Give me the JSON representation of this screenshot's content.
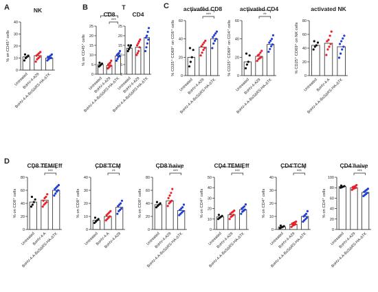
{
  "figure": {
    "bg": "#ffffff",
    "colors": {
      "black": "#111111",
      "red": "#e8202a",
      "blue": "#1f3fd6",
      "axis": "#222222"
    }
  },
  "chart_data": [
    {
      "id": "NK",
      "letter": "A",
      "type": "bar",
      "title": "NK",
      "ylabel": "% on CD45⁺ cells",
      "ylim": [
        0,
        40
      ],
      "yticks": [
        0,
        10,
        20,
        30,
        40
      ],
      "categories": [
        "Untreated",
        "BoHV-4-A29",
        "BoHV-4-A-BoSΔRS-HA-ΔTK"
      ],
      "values": [
        11,
        12,
        10
      ],
      "points": [
        [
          8,
          10,
          11,
          12,
          13
        ],
        [
          7,
          9,
          10,
          11,
          12,
          13,
          14,
          15
        ],
        [
          8,
          9,
          10,
          10,
          11,
          11,
          12,
          13
        ]
      ],
      "sig": []
    },
    {
      "id": "CD8T",
      "letter": "B",
      "group_title": "T",
      "type": "bar",
      "title": "CD8",
      "ylabel": "% on CD45⁺ cells",
      "ylim": [
        0,
        25
      ],
      "yticks": [
        0,
        5,
        10,
        15,
        20,
        25
      ],
      "categories": [
        "Untreated",
        "BoHV-4-A29",
        "BoHV-4-A-BoSΔRS-HA-ΔTK"
      ],
      "values": [
        5,
        4.5,
        9.5
      ],
      "points": [
        [
          4,
          4.5,
          5,
          5.5,
          6
        ],
        [
          3,
          3.5,
          4,
          4.5,
          5,
          5.5,
          6,
          7
        ],
        [
          7,
          8,
          9,
          9.5,
          10,
          10.5,
          11,
          12
        ]
      ],
      "sig": [
        {
          "from": 0,
          "to": 2,
          "label": "***",
          "level": 1
        },
        {
          "from": 1,
          "to": 2,
          "label": "***",
          "level": 0
        }
      ]
    },
    {
      "id": "CD4T",
      "type": "bar",
      "title": "CD4",
      "ylabel": "",
      "ylim": [
        0,
        25
      ],
      "yticks": [
        0,
        5,
        10,
        15,
        20,
        25
      ],
      "categories": [
        "Untreated",
        "BoHV-4-A29",
        "BoHV-4-A-BoSΔRS-HA-ΔTK"
      ],
      "values": [
        13.5,
        14,
        19
      ],
      "points": [
        [
          12,
          13,
          14,
          15,
          15
        ],
        [
          10,
          11,
          12,
          14,
          15,
          16,
          17,
          18
        ],
        [
          12,
          14,
          16,
          18,
          19,
          20,
          22,
          24
        ]
      ],
      "sig": []
    },
    {
      "id": "actCD8",
      "letter": "C",
      "type": "bar",
      "title": "activated CD8",
      "ylabel": "% CD25⁺ CD69⁺ on CD8⁺ cells",
      "ylim": [
        0,
        60
      ],
      "yticks": [
        0,
        20,
        40,
        60
      ],
      "categories": [
        "Untreated",
        "BoHV-4-A29",
        "BoHV-4-A-BoSΔRS-HA-ΔTK"
      ],
      "values": [
        20,
        31,
        40
      ],
      "points": [
        [
          10,
          15,
          20,
          28,
          30
        ],
        [
          22,
          25,
          28,
          30,
          32,
          34,
          36,
          38
        ],
        [
          30,
          35,
          38,
          40,
          42,
          44,
          46,
          48
        ]
      ],
      "sig": [
        {
          "from": 0,
          "to": 2,
          "label": "**",
          "level": 1
        },
        {
          "from": 1,
          "to": 2,
          "label": "***",
          "level": 0
        }
      ]
    },
    {
      "id": "actCD4",
      "type": "bar",
      "title": "activated CD4",
      "ylabel": "% CD25⁺ CD69⁺ on CD4⁺ cells",
      "ylim": [
        0,
        60
      ],
      "yticks": [
        0,
        20,
        40,
        60
      ],
      "categories": [
        "Untreated",
        "BoHV-4-A29",
        "BoHV-4-A-BoSΔRS-HA-ΔTK"
      ],
      "values": [
        15,
        21,
        34
      ],
      "points": [
        [
          8,
          12,
          15,
          22,
          24
        ],
        [
          16,
          18,
          19,
          20,
          22,
          23,
          25,
          27
        ],
        [
          26,
          29,
          32,
          34,
          36,
          38,
          40,
          44
        ]
      ],
      "sig": [
        {
          "from": 0,
          "to": 2,
          "label": "*",
          "level": 1
        },
        {
          "from": 1,
          "to": 2,
          "label": "**",
          "level": 0
        }
      ]
    },
    {
      "id": "actNK",
      "type": "bar",
      "title": "activated NK",
      "ylabel": "% CD25⁺ CD69⁺ on NK cells",
      "ylim": [
        0,
        80
      ],
      "yticks": [
        0,
        20,
        40,
        60,
        80
      ],
      "categories": [
        "Untreated",
        "BoHV-4-A",
        "BoHV-4-A-BoSΔRS-HA-ΔTK"
      ],
      "values": [
        44,
        47,
        42
      ],
      "points": [
        [
          38,
          42,
          44,
          48,
          50
        ],
        [
          30,
          38,
          42,
          46,
          50,
          52,
          58,
          64
        ],
        [
          26,
          32,
          38,
          42,
          46,
          50,
          54,
          58
        ]
      ],
      "sig": []
    },
    {
      "id": "CD8TEM",
      "letter": "D",
      "type": "bar",
      "title": "CD8 TEM/Eff",
      "ylabel": "% on CD8⁺ cells",
      "ylim": [
        0,
        80
      ],
      "yticks": [
        0,
        20,
        40,
        60,
        80
      ],
      "categories": [
        "Untreated",
        "BoHV-4-A",
        "BoHV-4-A-BoSΔRS-HA-ΔTK"
      ],
      "values": [
        42,
        45,
        60
      ],
      "points": [
        [
          35,
          38,
          42,
          46,
          50
        ],
        [
          35,
          38,
          40,
          42,
          44,
          48,
          50,
          54
        ],
        [
          52,
          55,
          58,
          60,
          62,
          64,
          66,
          68
        ]
      ],
      "sig": [
        {
          "from": 0,
          "to": 2,
          "label": "***",
          "level": 1
        },
        {
          "from": 1,
          "to": 2,
          "label": "***",
          "level": 0
        }
      ]
    },
    {
      "id": "CD8TCM",
      "type": "bar",
      "title": "CD8 TCM",
      "ylabel": "% on CD8⁺ cells",
      "ylim": [
        0,
        40
      ],
      "yticks": [
        0,
        10,
        20,
        30,
        40
      ],
      "categories": [
        "Untreated",
        "BoHV-4-A",
        "BoHV-4-A29"
      ],
      "values": [
        7,
        10,
        17
      ],
      "points": [
        [
          5,
          6,
          7,
          8,
          9
        ],
        [
          7,
          8,
          9,
          10,
          11,
          12,
          13,
          14
        ],
        [
          12,
          14,
          15,
          16,
          18,
          19,
          20,
          22
        ]
      ],
      "sig": [
        {
          "from": 0,
          "to": 2,
          "label": "**",
          "level": 1
        },
        {
          "from": 1,
          "to": 2,
          "label": "**",
          "level": 0
        }
      ]
    },
    {
      "id": "CD8naive",
      "type": "bar",
      "title": "CD8 naive",
      "ylabel": "% on CD8⁺ cells",
      "ylim": [
        0,
        80
      ],
      "yticks": [
        0,
        20,
        40,
        60,
        80
      ],
      "categories": [
        "Untreated",
        "BoHV-4-A29",
        "BoHV-4-A-BoSΔRS-HA-ΔTK"
      ],
      "values": [
        38,
        44,
        29
      ],
      "points": [
        [
          34,
          36,
          38,
          40,
          42
        ],
        [
          36,
          40,
          42,
          44,
          48,
          52,
          56,
          62
        ],
        [
          22,
          24,
          26,
          28,
          30,
          32,
          34,
          38
        ]
      ],
      "sig": [
        {
          "from": 0,
          "to": 2,
          "label": "**",
          "level": 1
        },
        {
          "from": 1,
          "to": 2,
          "label": "***",
          "level": 0
        }
      ]
    },
    {
      "id": "CD4TEM",
      "type": "bar",
      "title": "CD4 TEM/Eff",
      "ylabel": "% on CD4⁺ cells",
      "ylim": [
        0,
        50
      ],
      "yticks": [
        0,
        10,
        20,
        30,
        40,
        50
      ],
      "categories": [
        "Untreated",
        "BoHV-4-A29",
        "BoHV-4-A-BoSΔRS-HA-ΔTK"
      ],
      "values": [
        12,
        14,
        19
      ],
      "points": [
        [
          10,
          11,
          12,
          13,
          14
        ],
        [
          10,
          12,
          13,
          14,
          15,
          16,
          17,
          18
        ],
        [
          15,
          17,
          18,
          19,
          20,
          21,
          22,
          24
        ]
      ],
      "sig": [
        {
          "from": 0,
          "to": 2,
          "label": "***",
          "level": 1
        },
        {
          "from": 1,
          "to": 2,
          "label": "***",
          "level": 0
        }
      ]
    },
    {
      "id": "CD4TCM",
      "type": "bar",
      "title": "CD4 TCM",
      "ylabel": "% on CD4⁺ cells",
      "ylim": [
        0,
        40
      ],
      "yticks": [
        0,
        10,
        20,
        30,
        40
      ],
      "categories": [
        "Untreated",
        "BoHV-4-A29",
        "BoHV-4-A-BoSΔRS-HA-ΔTK"
      ],
      "values": [
        2,
        4,
        10
      ],
      "points": [
        [
          1,
          1.5,
          2,
          2.5,
          3
        ],
        [
          2,
          3,
          3.5,
          4,
          4.5,
          5,
          5.5,
          6
        ],
        [
          6,
          7,
          8,
          9,
          10,
          11,
          12,
          14
        ]
      ],
      "sig": [
        {
          "from": 0,
          "to": 2,
          "label": "**",
          "level": 1
        },
        {
          "from": 1,
          "to": 2,
          "label": "***",
          "level": 0
        }
      ]
    },
    {
      "id": "CD4naive",
      "type": "bar",
      "title": "CD4 naive",
      "ylabel": "% on CD4⁺ cells",
      "ylim": [
        0,
        100
      ],
      "yticks": [
        0,
        20,
        40,
        60,
        80,
        100
      ],
      "categories": [
        "Untreated",
        "BoHV-4-A29",
        "BoHV-4-A-BoSΔRS-HA-ΔTK"
      ],
      "values": [
        82,
        80,
        71
      ],
      "points": [
        [
          80,
          81,
          82,
          83,
          84
        ],
        [
          76,
          78,
          79,
          80,
          81,
          82,
          83,
          85
        ],
        [
          64,
          66,
          68,
          70,
          72,
          74,
          76,
          78
        ]
      ],
      "sig": [
        {
          "from": 0,
          "to": 2,
          "label": "**",
          "level": 1
        },
        {
          "from": 1,
          "to": 2,
          "label": "***",
          "level": 0
        }
      ]
    }
  ]
}
